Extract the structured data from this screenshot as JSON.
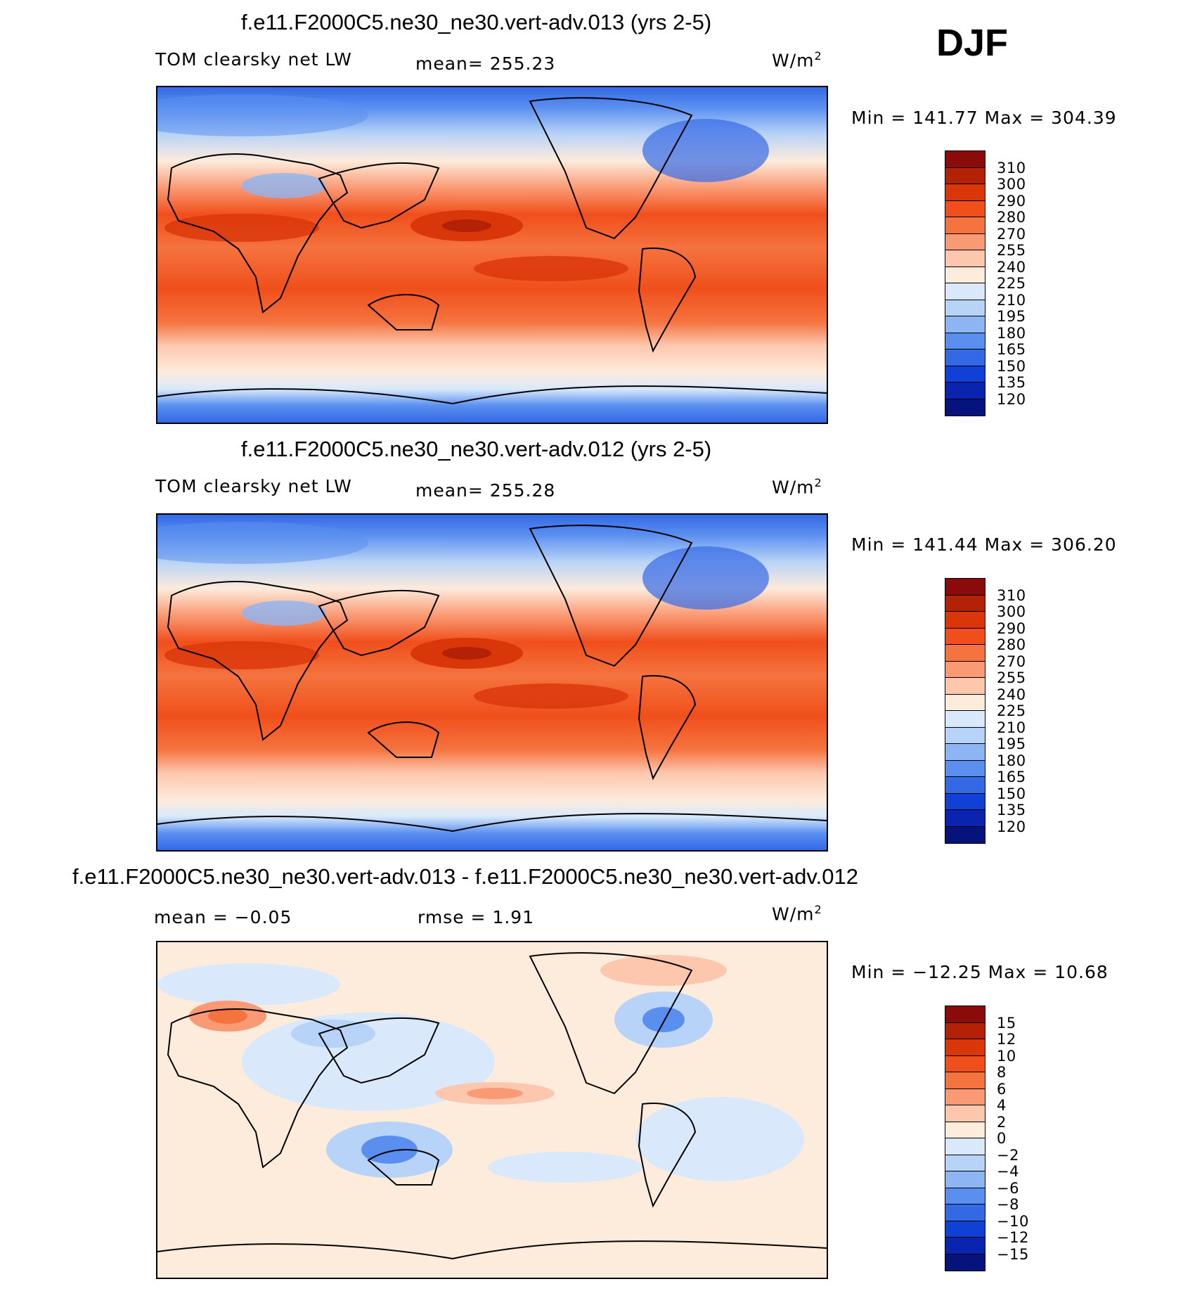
{
  "season": "DJF",
  "panels": [
    {
      "title": "f.e11.F2000C5.ne30_ne30.vert-adv.013 (yrs 2-5)",
      "left_label": "TOM clearsky net LW",
      "center_label": "mean= 255.23",
      "units": "W/m",
      "units_sup": "2",
      "minmax": "Min = 141.77 Max = 304.39",
      "colorbar_ticks": [
        "310",
        "300",
        "290",
        "280",
        "270",
        "255",
        "240",
        "225",
        "210",
        "195",
        "180",
        "165",
        "150",
        "135",
        "120"
      ]
    },
    {
      "title": "f.e11.F2000C5.ne30_ne30.vert-adv.012 (yrs 2-5)",
      "left_label": "TOM clearsky net LW",
      "center_label": "mean= 255.28",
      "units": "W/m",
      "units_sup": "2",
      "minmax": "Min = 141.44 Max = 306.20",
      "colorbar_ticks": [
        "310",
        "300",
        "290",
        "280",
        "270",
        "255",
        "240",
        "225",
        "210",
        "195",
        "180",
        "165",
        "150",
        "135",
        "120"
      ]
    },
    {
      "title": "f.e11.F2000C5.ne30_ne30.vert-adv.013 - f.e11.F2000C5.ne30_ne30.vert-adv.012",
      "left_label": "mean =   −0.05",
      "center_label": "rmse =    1.91",
      "units": "W/m",
      "units_sup": "2",
      "minmax": "Min = −12.25 Max =   10.68",
      "colorbar_ticks": [
        "15",
        "12",
        "10",
        "8",
        "6",
        "4",
        "2",
        "0",
        "−2",
        "−4",
        "−6",
        "−8",
        "−10",
        "−12",
        "−15"
      ]
    }
  ],
  "colors": {
    "abs_scale": [
      "#8b0a0a",
      "#b32106",
      "#d9360a",
      "#f04f1b",
      "#f5733f",
      "#fa9a74",
      "#fdc7ad",
      "#fdebdc",
      "#d9e9fb",
      "#b8d3f8",
      "#8db5f4",
      "#5a8ff0",
      "#3469e6",
      "#1140d6",
      "#0a24b0",
      "#06137d"
    ],
    "diff_scale": [
      "#8b0a0a",
      "#b32106",
      "#d9360a",
      "#f04f1b",
      "#f5733f",
      "#fa9a74",
      "#fdc7ad",
      "#fdebdc",
      "#d9e9fb",
      "#b8d3f8",
      "#8db5f4",
      "#5a8ff0",
      "#3469e6",
      "#1140d6",
      "#0a24b0",
      "#06137d"
    ]
  }
}
